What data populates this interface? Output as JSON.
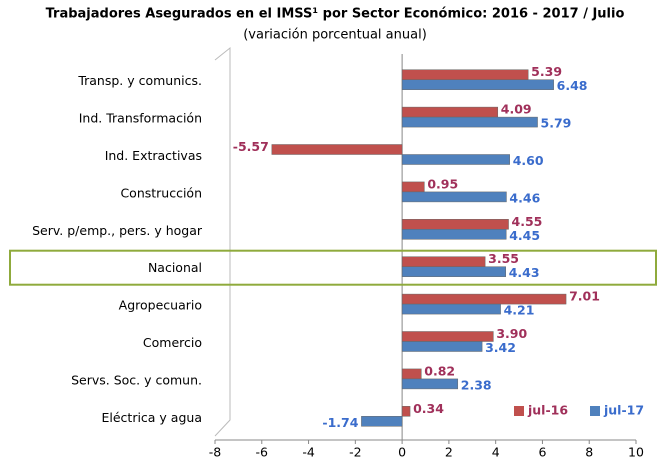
{
  "chart_data": {
    "type": "hbar",
    "title": "Trabajadores Asegurados en el IMSS¹ por Sector Económico: 2016 - 2017 / Julio",
    "subtitle": "(variación porcentual anual)",
    "categories": [
      "Transp. y comunics.",
      "Ind. Transformación",
      "Ind. Extractivas",
      "Construcción",
      "Serv. p/emp., pers. y hogar",
      "Nacional",
      "Agropecuario",
      "Comercio",
      "Servs. Soc. y comun.",
      "Eléctrica y agua"
    ],
    "series": [
      {
        "name": "jul-16",
        "color": "#c0504d",
        "label_color": "#a0305a",
        "values": [
          5.39,
          4.09,
          -5.57,
          0.95,
          4.55,
          3.55,
          7.01,
          3.9,
          0.82,
          0.34
        ],
        "value_labels": [
          "5.39",
          "4.09",
          "-5.57",
          "0.95",
          "4.55",
          "3.55",
          "7.01",
          "3.90",
          "0.82",
          "0.34"
        ]
      },
      {
        "name": "jul-17",
        "color": "#4f81bd",
        "label_color": "#3a6ccc",
        "values": [
          6.48,
          5.79,
          4.6,
          4.46,
          4.45,
          4.43,
          4.21,
          3.42,
          2.38,
          -1.74
        ],
        "value_labels": [
          "6.48",
          "5.79",
          "4.60",
          "4.46",
          "4.45",
          "4.43",
          "4.21",
          "3.42",
          "2.38",
          "-1.74"
        ]
      }
    ],
    "highlight": "Nacional",
    "xlim": [
      -8,
      10
    ],
    "xticks": [
      -8,
      -6,
      -4,
      -2,
      0,
      2,
      4,
      6,
      8,
      10
    ],
    "legend": "lower right"
  }
}
